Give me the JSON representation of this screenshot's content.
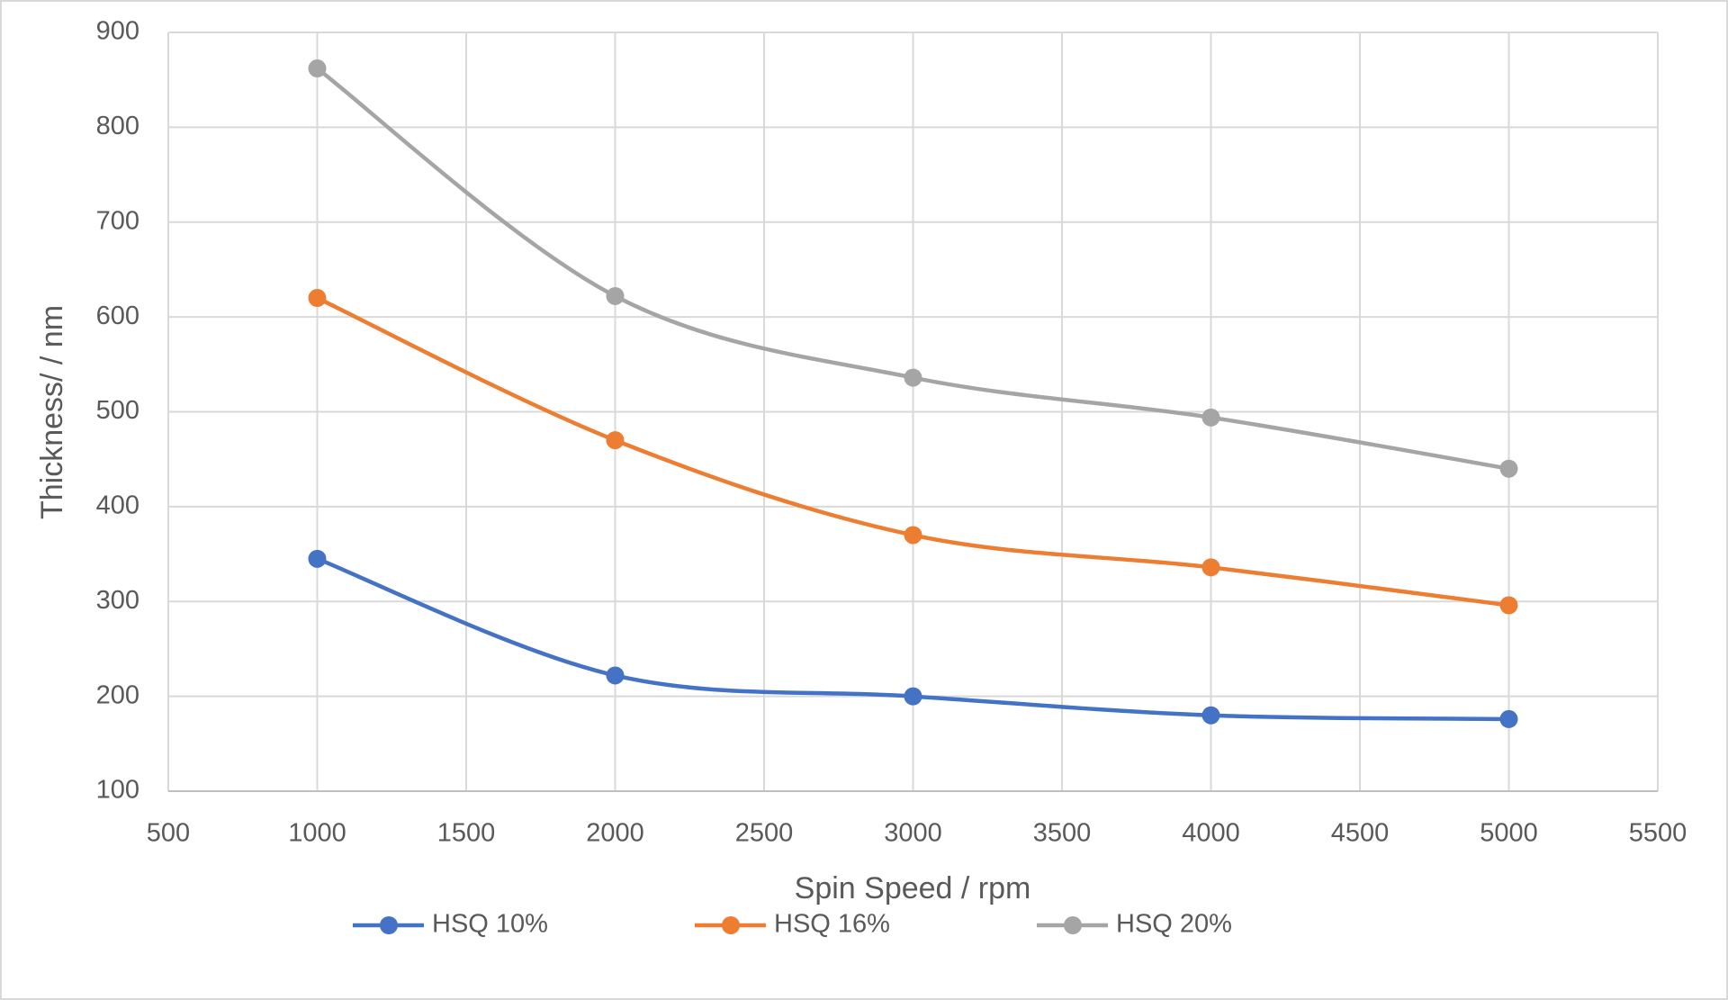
{
  "chart_data": {
    "type": "line",
    "x_label": "Spin Speed / rpm",
    "y_label": "Thickness/ / nm",
    "x": [
      1000,
      2000,
      3000,
      4000,
      5000
    ],
    "series": [
      {
        "name": "HSQ 10%",
        "color": "#4472c4",
        "values": [
          345,
          222,
          200,
          180,
          176
        ]
      },
      {
        "name": "HSQ 16%",
        "color": "#ed7d31",
        "values": [
          620,
          470,
          370,
          336,
          296
        ]
      },
      {
        "name": "HSQ 20%",
        "color": "#a5a5a5",
        "values": [
          862,
          622,
          536,
          494,
          440
        ]
      }
    ],
    "xlim": [
      500,
      5500
    ],
    "xticks": [
      500,
      1000,
      1500,
      2000,
      2500,
      3000,
      3500,
      4000,
      4500,
      5000,
      5500
    ],
    "ylim": [
      100,
      900
    ],
    "yticks": [
      100,
      200,
      300,
      400,
      500,
      600,
      700,
      800,
      900
    ],
    "grid": true,
    "smooth": true,
    "legend": "bottom"
  }
}
